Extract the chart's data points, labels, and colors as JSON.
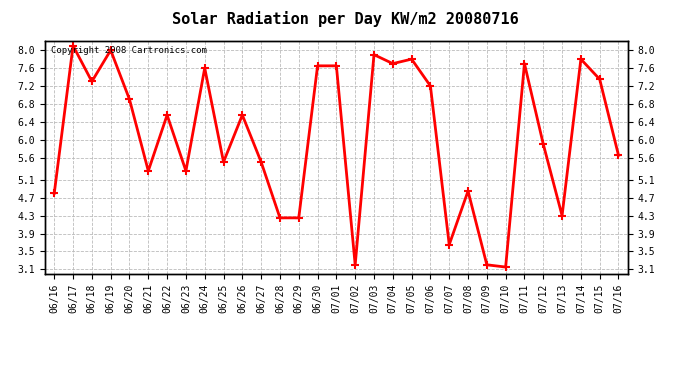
{
  "title": "Solar Radiation per Day KW/m2 20080716",
  "copyright_text": "Copyright 2008 Cartronics.com",
  "dates": [
    "06/16",
    "06/17",
    "06/18",
    "06/19",
    "06/20",
    "06/21",
    "06/22",
    "06/23",
    "06/24",
    "06/25",
    "06/26",
    "06/27",
    "06/28",
    "06/29",
    "06/30",
    "07/01",
    "07/02",
    "07/03",
    "07/04",
    "07/05",
    "07/06",
    "07/07",
    "07/08",
    "07/09",
    "07/10",
    "07/11",
    "07/12",
    "07/13",
    "07/14",
    "07/15",
    "07/16"
  ],
  "values": [
    4.8,
    8.1,
    7.3,
    8.0,
    6.9,
    5.3,
    6.55,
    5.3,
    7.6,
    5.5,
    6.55,
    5.5,
    4.25,
    4.25,
    7.65,
    7.65,
    3.2,
    7.9,
    7.7,
    7.8,
    7.2,
    3.65,
    4.85,
    3.2,
    3.15,
    7.7,
    5.9,
    4.3,
    7.8,
    7.35,
    5.65
  ],
  "line_color": "#ff0000",
  "marker_color": "#ff0000",
  "marker_size": 3,
  "line_width": 2.0,
  "ylim": [
    3.0,
    8.2
  ],
  "yticks": [
    3.1,
    3.5,
    3.9,
    4.3,
    4.7,
    5.1,
    5.6,
    6.0,
    6.4,
    6.8,
    7.2,
    7.6,
    8.0
  ],
  "bg_color": "#ffffff",
  "plot_bg_color": "#ffffff",
  "grid_color": "#bbbbbb",
  "title_fontsize": 11,
  "tick_fontsize": 7,
  "copyright_fontsize": 6.5
}
